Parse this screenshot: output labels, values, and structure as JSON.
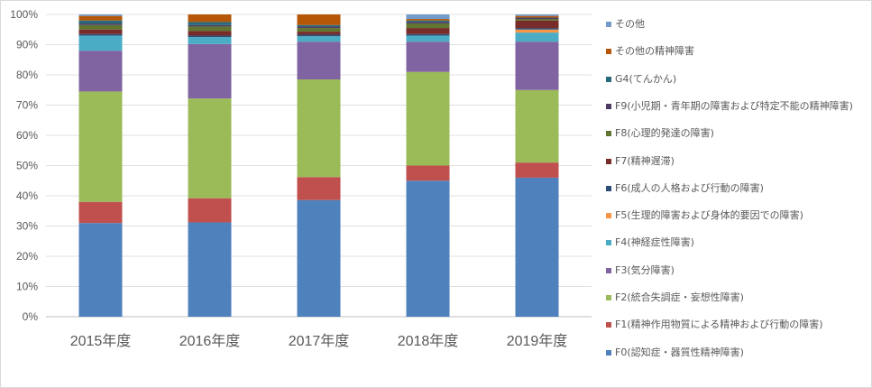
{
  "chart_data": {
    "type": "bar",
    "stacked": true,
    "categories": [
      "2015年度",
      "2016年度",
      "2017年度",
      "2018年度",
      "2019年度"
    ],
    "ylim": [
      0,
      100
    ],
    "yticks": [
      "0%",
      "10%",
      "20%",
      "30%",
      "40%",
      "50%",
      "60%",
      "70%",
      "80%",
      "90%",
      "100%"
    ],
    "grid": true,
    "legend_position": "right",
    "series": [
      {
        "name": "F0(認知症・器質性精神障害)",
        "color": "#4f81bd",
        "values": [
          31,
          31.2,
          38.6,
          45,
          46
        ]
      },
      {
        "name": "F1(精神作用物質による精神および行動の障害)",
        "color": "#c0504d",
        "values": [
          7,
          8,
          7.6,
          5,
          5
        ]
      },
      {
        "name": "F2(統合失調症・妄想性障害)",
        "color": "#9bbb59",
        "values": [
          36.5,
          33,
          32.3,
          31,
          24
        ]
      },
      {
        "name": "F3(気分障害)",
        "color": "#8064a2",
        "values": [
          13.5,
          18,
          12.5,
          10,
          16
        ]
      },
      {
        "name": "F4(神経症性障害)",
        "color": "#4bacc6",
        "values": [
          5,
          2.3,
          1.8,
          2,
          3
        ]
      },
      {
        "name": "F5(生理的障害および身体的要因での障害)",
        "color": "#f79646",
        "values": [
          0,
          0,
          0,
          0,
          1
        ]
      },
      {
        "name": "F6(成人の人格および行動の障害)",
        "color": "#2c4d75",
        "values": [
          0.5,
          0.5,
          0.5,
          0.5,
          0.5
        ]
      },
      {
        "name": "F7(精神遅滞)",
        "color": "#772c2a",
        "values": [
          1.5,
          1.5,
          1,
          2,
          2.5
        ]
      },
      {
        "name": "F8(心理的発達の障害)",
        "color": "#5f7530",
        "values": [
          1.5,
          1.5,
          1.2,
          1.5,
          0.5
        ]
      },
      {
        "name": "F9(小児期・青年期の障害および特定不能の精神障害)",
        "color": "#4d3b62",
        "values": [
          0.5,
          0.5,
          0.5,
          0.5,
          0.5
        ]
      },
      {
        "name": "G4(てんかん)",
        "color": "#276a7c",
        "values": [
          1,
          1,
          0.5,
          0.5,
          0
        ]
      },
      {
        "name": "その他の精神障害",
        "color": "#b65708",
        "values": [
          1.5,
          2.5,
          3.5,
          0.5,
          0.5
        ]
      },
      {
        "name": "その他",
        "color": "#729aca",
        "values": [
          0.5,
          0,
          0,
          1.5,
          0.5
        ]
      }
    ]
  }
}
